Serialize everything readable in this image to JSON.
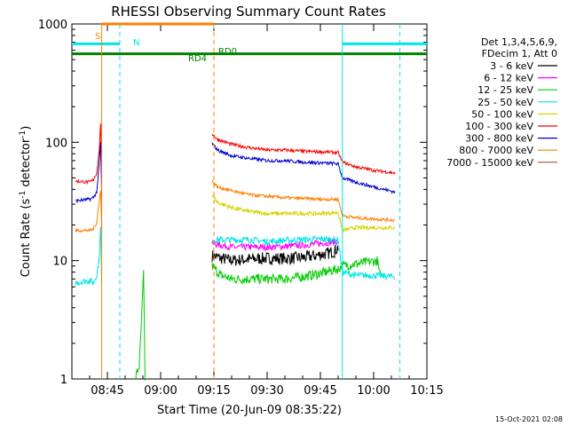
{
  "title": "RHESSI Observing Summary Count Rates",
  "xlabel": "Start Time (20-Jun-09 08:35:22)",
  "ylabel": "Count Rate (s",
  "ylabel_sup": "-1",
  "ylabel_tail": " detector",
  "ylabel_sup2": "-1",
  "ylabel_close": ")",
  "timestamp": "15-Oct-2021 02:08",
  "legend_header": [
    "Det 1,3,4,5,6,9,",
    "FDecim 1, Att 0"
  ],
  "flags": {
    "S": "S",
    "N": "N",
    "RD0": "RD0",
    "RD4": "RD4"
  },
  "chart_data": {
    "type": "line",
    "title": "RHESSI Observing Summary Count Rates",
    "xlabel": "Start Time (20-Jun-09 08:35:22)",
    "ylabel": "Count Rate (s^-1 detector^-1)",
    "xscale": "time",
    "yscale": "log",
    "xlim_min": [
      0,
      100
    ],
    "ylim": [
      1,
      1000
    ],
    "x_ticks": [
      "08:45",
      "09:00",
      "09:15",
      "09:30",
      "09:45",
      "10:00",
      "10:15"
    ],
    "x_tick_min": [
      10,
      25,
      40,
      55,
      70,
      85,
      100
    ],
    "y_ticks": [
      "1",
      "10",
      "100",
      "1000"
    ],
    "y_tick_values": [
      1,
      10,
      100,
      1000
    ],
    "legend_position": "right",
    "series": [
      {
        "name": "3 - 6 keV",
        "color": "#000000",
        "points": [
          [
            39.5,
            11
          ],
          [
            42,
            10.5
          ],
          [
            45,
            10
          ],
          [
            50,
            10.3
          ],
          [
            55,
            10.5
          ],
          [
            60,
            10.4
          ],
          [
            65,
            10.6
          ],
          [
            70,
            11.2
          ],
          [
            72,
            11.5
          ],
          [
            74,
            12
          ],
          [
            75,
            13
          ]
        ],
        "noise": 0.15
      },
      {
        "name": "6 - 12 keV",
        "color": "#ff00ff",
        "points": [
          [
            39.5,
            14
          ],
          [
            42,
            13.5
          ],
          [
            45,
            13
          ],
          [
            50,
            13
          ],
          [
            55,
            13
          ],
          [
            60,
            13.2
          ],
          [
            65,
            13.5
          ],
          [
            70,
            14
          ],
          [
            75,
            14.5
          ]
        ],
        "noise": 0.08
      },
      {
        "name": "12 - 25 keV",
        "color": "#00cc00",
        "points": [
          [
            18,
            1.05
          ],
          [
            19,
            1.3
          ],
          [
            19.6,
            3
          ],
          [
            20.2,
            8
          ],
          [
            20.6,
            1
          ],
          [
            39.5,
            9
          ],
          [
            42,
            7.5
          ],
          [
            45,
            7
          ],
          [
            50,
            7
          ],
          [
            55,
            7
          ],
          [
            60,
            7
          ],
          [
            65,
            7.3
          ],
          [
            70,
            7.8
          ],
          [
            75,
            8.5
          ],
          [
            76,
            9
          ],
          [
            86,
            10
          ],
          [
            87,
            7
          ]
        ],
        "noise": 0.12
      },
      {
        "name": "25 - 50 keV",
        "color": "#00e5e5",
        "points": [
          [
            1,
            6.5
          ],
          [
            5,
            6.8
          ],
          [
            6,
            6.5
          ],
          [
            7,
            7.5
          ],
          [
            7.6,
            10
          ],
          [
            8.1,
            19
          ],
          [
            8.4,
            6
          ],
          [
            39.5,
            15
          ],
          [
            42,
            15
          ],
          [
            50,
            15
          ],
          [
            55,
            14.5
          ],
          [
            60,
            14.8
          ],
          [
            65,
            15
          ],
          [
            70,
            15.2
          ],
          [
            75,
            15
          ],
          [
            76.2,
            8
          ],
          [
            80,
            7.5
          ],
          [
            85,
            7.5
          ],
          [
            91,
            7.3
          ]
        ],
        "noise": 0.08
      },
      {
        "name": "50 - 100 keV",
        "color": "#d4d400",
        "points": [
          [
            39.5,
            36
          ],
          [
            41,
            31
          ],
          [
            45,
            28
          ],
          [
            50,
            26
          ],
          [
            55,
            25
          ],
          [
            60,
            25
          ],
          [
            65,
            25
          ],
          [
            70,
            25
          ],
          [
            75,
            25.5
          ],
          [
            76.2,
            18
          ],
          [
            80,
            19
          ],
          [
            85,
            19
          ],
          [
            91,
            19
          ]
        ],
        "noise": 0.05
      },
      {
        "name": "100 - 300 keV",
        "color": "#ff0000",
        "points": [
          [
            1,
            47
          ],
          [
            5,
            46
          ],
          [
            6,
            48
          ],
          [
            7,
            55
          ],
          [
            7.6,
            80
          ],
          [
            8.1,
            140
          ],
          [
            8.4,
            50
          ],
          [
            39.5,
            118
          ],
          [
            41,
            106
          ],
          [
            45,
            96
          ],
          [
            50,
            90
          ],
          [
            55,
            86
          ],
          [
            60,
            86
          ],
          [
            65,
            84
          ],
          [
            70,
            83
          ],
          [
            75,
            82
          ],
          [
            76.2,
            68
          ],
          [
            80,
            62
          ],
          [
            85,
            58
          ],
          [
            91,
            55
          ]
        ],
        "noise": 0.04
      },
      {
        "name": "300 - 800 keV",
        "color": "#0000d0",
        "points": [
          [
            1,
            32
          ],
          [
            5,
            33
          ],
          [
            6,
            34
          ],
          [
            7,
            38
          ],
          [
            7.6,
            60
          ],
          [
            8.1,
            100
          ],
          [
            8.4,
            35
          ],
          [
            39.5,
            98
          ],
          [
            41,
            86
          ],
          [
            45,
            77
          ],
          [
            50,
            73
          ],
          [
            55,
            70
          ],
          [
            60,
            70
          ],
          [
            65,
            68
          ],
          [
            70,
            67
          ],
          [
            75,
            66
          ],
          [
            76.2,
            50
          ],
          [
            80,
            46
          ],
          [
            85,
            42
          ],
          [
            91,
            38
          ]
        ],
        "noise": 0.04
      },
      {
        "name": "800 - 7000 keV",
        "color": "#ff8000",
        "points": [
          [
            1,
            18
          ],
          [
            5,
            18
          ],
          [
            6,
            18.5
          ],
          [
            7,
            21
          ],
          [
            7.6,
            30
          ],
          [
            8.1,
            40
          ],
          [
            8.4,
            18
          ],
          [
            39.5,
            47
          ],
          [
            41,
            42
          ],
          [
            45,
            39
          ],
          [
            50,
            36
          ],
          [
            55,
            35
          ],
          [
            60,
            34
          ],
          [
            65,
            33.5
          ],
          [
            70,
            33
          ],
          [
            75,
            33
          ],
          [
            76.2,
            24
          ],
          [
            80,
            23
          ],
          [
            85,
            22.5
          ],
          [
            91,
            22
          ]
        ],
        "noise": 0.04
      },
      {
        "name": "7000 - 15000 keV",
        "color": "#a0522d",
        "points": [],
        "noise": 0
      }
    ],
    "markers": [
      {
        "label": "S",
        "type": "bar",
        "color": "#ff8000",
        "level": 1000,
        "from_min": 8.4,
        "to_min": 40
      },
      {
        "label": "N",
        "type": "bar",
        "color": "#00e5e5",
        "level": 680,
        "from_min": 0,
        "to_min": 13.5
      },
      {
        "label": "N",
        "type": "bar",
        "color": "#00e5e5",
        "level": 680,
        "from_min": 76.2,
        "to_min": 100
      },
      {
        "label": "RD0",
        "type": "bar",
        "color": "#008000",
        "level": 560,
        "from_min": 0,
        "to_min": 100
      }
    ],
    "vlines": [
      {
        "min": 8.4,
        "color": "#ff8000",
        "dash": false
      },
      {
        "min": 13.5,
        "color": "#00e5e5",
        "dash": true
      },
      {
        "min": 40,
        "color": "#ff8000",
        "dash": true
      },
      {
        "min": 76.2,
        "color": "#00e5e5",
        "dash": false
      },
      {
        "min": 92.4,
        "color": "#00e5e5",
        "dash": true
      }
    ]
  }
}
